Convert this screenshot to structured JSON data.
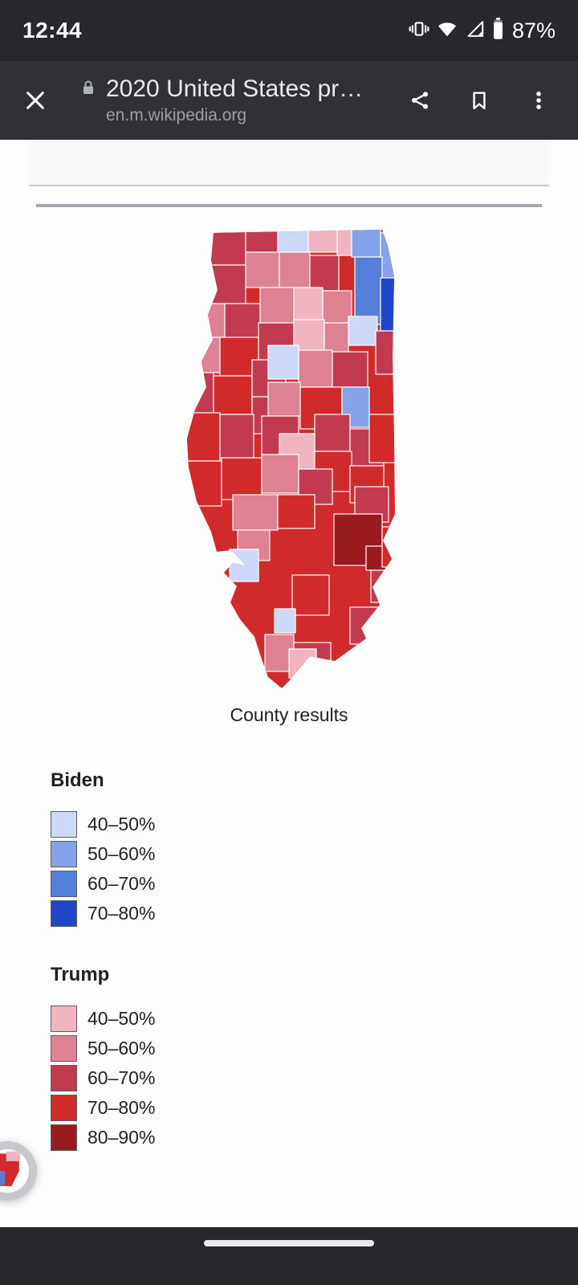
{
  "status_bar": {
    "time": "12:44",
    "battery_percent": "87%",
    "icons": [
      "vibrate-icon",
      "wifi-icon",
      "cell-signal-icon",
      "battery-icon"
    ]
  },
  "browser": {
    "title": "2020 United States pr…",
    "url": "en.m.wikipedia.org",
    "actions": [
      "close",
      "share",
      "bookmark",
      "overflow-menu"
    ]
  },
  "article": {
    "caption": "County results",
    "legend": {
      "biden": {
        "label": "Biden",
        "bins": [
          {
            "range": "40–50%",
            "color": "#ccd8f6"
          },
          {
            "range": "50–60%",
            "color": "#86a3ea"
          },
          {
            "range": "60–70%",
            "color": "#5580d9"
          },
          {
            "range": "70–80%",
            "color": "#1f46c8"
          }
        ]
      },
      "trump": {
        "label": "Trump",
        "bins": [
          {
            "range": "40–50%",
            "color": "#f1b5c1"
          },
          {
            "range": "50–60%",
            "color": "#dd8193"
          },
          {
            "range": "60–70%",
            "color": "#c23a50"
          },
          {
            "range": "70–80%",
            "color": "#d02a2a"
          },
          {
            "range": "80–90%",
            "color": "#991b1e"
          }
        ]
      }
    }
  },
  "map": {
    "description": "Illinois 2020 presidential election results by county choropleth",
    "colors": {
      "b40": "#ccd8f6",
      "b50": "#86a3ea",
      "b60": "#5580d9",
      "b70": "#1f46c8",
      "t40": "#f1b5c1",
      "t50": "#dd8193",
      "t60": "#c23a50",
      "t70": "#d02a2a",
      "t80": "#991b1e"
    },
    "cells": [
      [
        0,
        0,
        282,
        573,
        "t70"
      ],
      [
        30,
        0,
        46,
        46,
        "t60"
      ],
      [
        76,
        0,
        40,
        30,
        "t60"
      ],
      [
        116,
        0,
        38,
        30,
        "b40"
      ],
      [
        154,
        0,
        36,
        30,
        "t40"
      ],
      [
        190,
        0,
        18,
        34,
        "t40"
      ],
      [
        208,
        0,
        36,
        36,
        "b50"
      ],
      [
        244,
        6,
        38,
        58,
        "b50"
      ],
      [
        212,
        36,
        34,
        84,
        "b60"
      ],
      [
        244,
        62,
        38,
        66,
        "b70"
      ],
      [
        76,
        30,
        42,
        44,
        "t50"
      ],
      [
        118,
        30,
        38,
        44,
        "t50"
      ],
      [
        156,
        34,
        36,
        44,
        "t60"
      ],
      [
        28,
        46,
        48,
        48,
        "t60"
      ],
      [
        8,
        94,
        42,
        42,
        "t50"
      ],
      [
        50,
        94,
        44,
        44,
        "t60"
      ],
      [
        94,
        74,
        42,
        44,
        "t50"
      ],
      [
        136,
        74,
        36,
        40,
        "t40"
      ],
      [
        172,
        78,
        36,
        40,
        "t50"
      ],
      [
        204,
        110,
        36,
        36,
        "b40"
      ],
      [
        238,
        128,
        44,
        54,
        "t60"
      ],
      [
        2,
        136,
        42,
        44,
        "t50"
      ],
      [
        44,
        136,
        48,
        48,
        "t70"
      ],
      [
        92,
        118,
        44,
        46,
        "t60"
      ],
      [
        136,
        114,
        38,
        44,
        "t40"
      ],
      [
        174,
        118,
        30,
        44,
        "t50"
      ],
      [
        0,
        180,
        36,
        52,
        "t60"
      ],
      [
        36,
        184,
        48,
        48,
        "t70"
      ],
      [
        84,
        164,
        42,
        46,
        "t60"
      ],
      [
        142,
        152,
        42,
        46,
        "t50"
      ],
      [
        184,
        154,
        44,
        44,
        "t60"
      ],
      [
        144,
        198,
        52,
        52,
        "t70"
      ],
      [
        196,
        198,
        34,
        50,
        "b50"
      ],
      [
        84,
        210,
        46,
        46,
        "t60"
      ],
      [
        104,
        146,
        38,
        42,
        "b40"
      ],
      [
        2,
        230,
        42,
        60,
        "t70"
      ],
      [
        44,
        232,
        42,
        54,
        "t60"
      ],
      [
        0,
        290,
        46,
        56,
        "t70"
      ],
      [
        46,
        286,
        50,
        52,
        "t70"
      ],
      [
        104,
        192,
        40,
        42,
        "t50"
      ],
      [
        96,
        234,
        46,
        48,
        "t60"
      ],
      [
        162,
        232,
        44,
        46,
        "t60"
      ],
      [
        206,
        250,
        42,
        46,
        "t60"
      ],
      [
        230,
        232,
        52,
        60,
        "t70"
      ],
      [
        118,
        256,
        44,
        44,
        "t40"
      ],
      [
        162,
        278,
        46,
        50,
        "t70"
      ],
      [
        96,
        282,
        46,
        48,
        "t50"
      ],
      [
        142,
        300,
        42,
        44,
        "t60"
      ],
      [
        206,
        296,
        42,
        46,
        "t70"
      ],
      [
        60,
        332,
        56,
        44,
        "t50"
      ],
      [
        116,
        332,
        46,
        42,
        "t70"
      ],
      [
        212,
        322,
        42,
        44,
        "t60"
      ],
      [
        66,
        376,
        40,
        38,
        "t50"
      ],
      [
        186,
        356,
        60,
        64,
        "t80"
      ],
      [
        226,
        396,
        30,
        30,
        "t80"
      ],
      [
        246,
        372,
        36,
        50,
        "t70"
      ],
      [
        232,
        426,
        46,
        40,
        "t60"
      ],
      [
        56,
        400,
        36,
        40,
        "b40"
      ],
      [
        134,
        432,
        46,
        50,
        "t70"
      ],
      [
        206,
        472,
        42,
        46,
        "t60"
      ],
      [
        100,
        506,
        36,
        46,
        "t50"
      ],
      [
        136,
        516,
        46,
        40,
        "t60"
      ],
      [
        112,
        474,
        26,
        30,
        "b40"
      ],
      [
        130,
        524,
        34,
        36,
        "t40"
      ],
      [
        152,
        544,
        40,
        29,
        "t60"
      ]
    ]
  }
}
